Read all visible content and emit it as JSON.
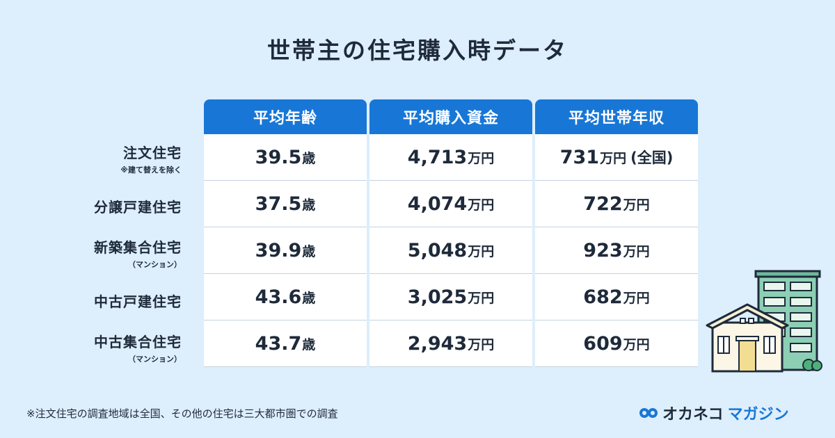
{
  "title": "世帯主の住宅購入時データ",
  "columns": [
    "平均年齢",
    "平均購入資金",
    "平均世帯年収"
  ],
  "rows": [
    {
      "label": "注文住宅",
      "sub": "※建て替えを除く",
      "age": "39.5",
      "age_unit": "歳",
      "fund": "4,713",
      "fund_unit": "万円",
      "income": "731",
      "income_unit": "万円",
      "income_note": "(全国)"
    },
    {
      "label": "分譲戸建住宅",
      "sub": "",
      "age": "37.5",
      "age_unit": "歳",
      "fund": "4,074",
      "fund_unit": "万円",
      "income": "722",
      "income_unit": "万円",
      "income_note": ""
    },
    {
      "label": "新築集合住宅",
      "sub": "（マンション）",
      "age": "39.9",
      "age_unit": "歳",
      "fund": "5,048",
      "fund_unit": "万円",
      "income": "923",
      "income_unit": "万円",
      "income_note": ""
    },
    {
      "label": "中古戸建住宅",
      "sub": "",
      "age": "43.6",
      "age_unit": "歳",
      "fund": "3,025",
      "fund_unit": "万円",
      "income": "682",
      "income_unit": "万円",
      "income_note": ""
    },
    {
      "label": "中古集合住宅",
      "sub": "（マンション）",
      "age": "43.7",
      "age_unit": "歳",
      "fund": "2,943",
      "fund_unit": "万円",
      "income": "609",
      "income_unit": "万円",
      "income_note": ""
    }
  ],
  "footnote": "※注文住宅の調査地域は全国、その他の住宅は三大都市圏での調査",
  "logo": {
    "part1": "オカネコ",
    "part2": "マガジン",
    "icon": "cat-face-icon"
  },
  "illustration": "house-and-apartment-icon",
  "colors": {
    "background": "#ddeefd",
    "header": "#1877d6",
    "text": "#1e2a3a"
  }
}
